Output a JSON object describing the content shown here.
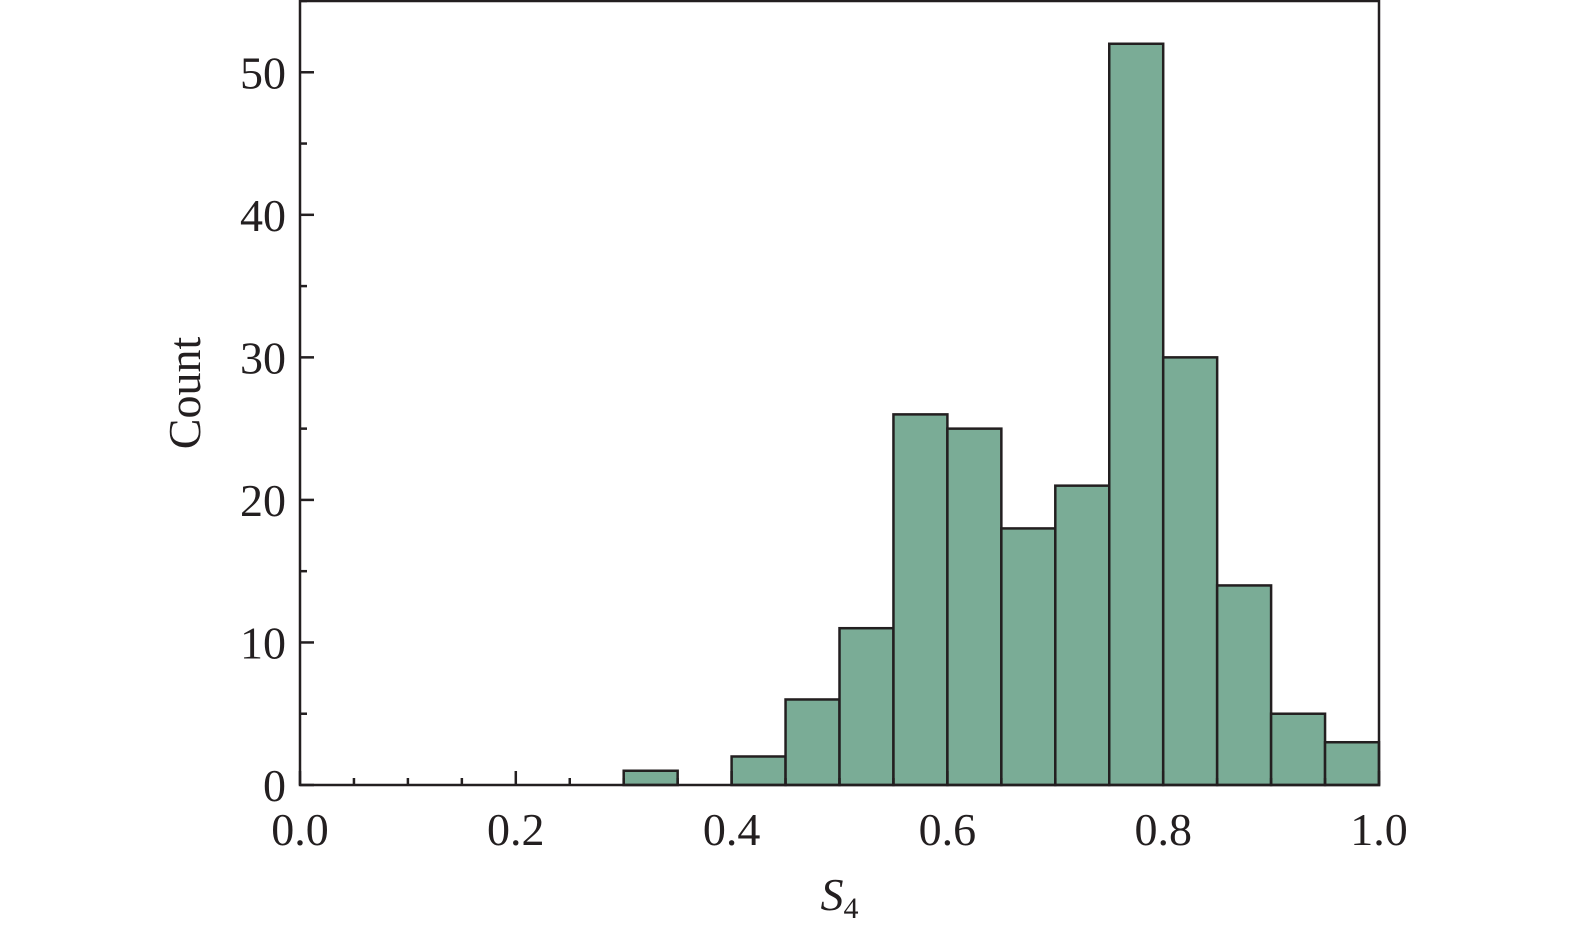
{
  "chart_data": {
    "type": "bar",
    "title": "",
    "xlabel_main": "S",
    "xlabel_sub": "4",
    "ylabel": "Count",
    "xlim": [
      0.0,
      1.0
    ],
    "ylim": [
      0,
      55
    ],
    "x_ticks": [
      "0.0",
      "0.2",
      "0.4",
      "0.6",
      "0.8",
      "1.0"
    ],
    "y_ticks": [
      "0",
      "10",
      "20",
      "30",
      "40",
      "50"
    ],
    "bin_width": 0.05,
    "bins": [
      {
        "start": 0.3,
        "end": 0.35,
        "count": 1
      },
      {
        "start": 0.4,
        "end": 0.45,
        "count": 2
      },
      {
        "start": 0.45,
        "end": 0.5,
        "count": 6
      },
      {
        "start": 0.5,
        "end": 0.55,
        "count": 11
      },
      {
        "start": 0.55,
        "end": 0.6,
        "count": 26
      },
      {
        "start": 0.6,
        "end": 0.65,
        "count": 25
      },
      {
        "start": 0.65,
        "end": 0.7,
        "count": 18
      },
      {
        "start": 0.7,
        "end": 0.75,
        "count": 21
      },
      {
        "start": 0.75,
        "end": 0.8,
        "count": 52
      },
      {
        "start": 0.8,
        "end": 0.85,
        "count": 30
      },
      {
        "start": 0.85,
        "end": 0.9,
        "count": 14
      },
      {
        "start": 0.9,
        "end": 0.95,
        "count": 5
      },
      {
        "start": 0.95,
        "end": 1.0,
        "count": 3
      }
    ],
    "bar_color": "#7aac96",
    "edge_color": "#231f20",
    "grid": false,
    "legend": "none"
  }
}
